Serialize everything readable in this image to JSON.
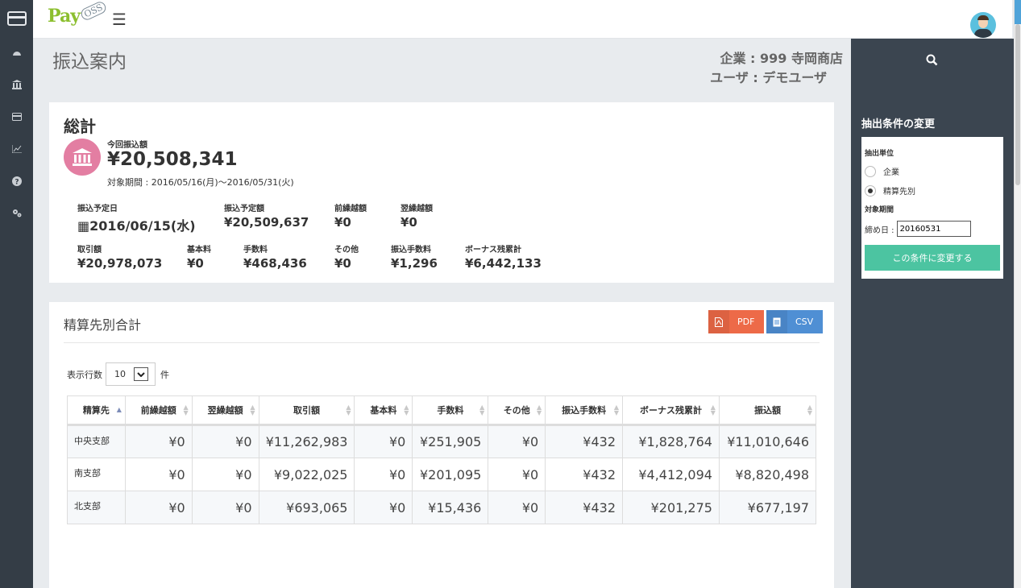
{
  "app": {
    "logo_main": "Pay",
    "logo_sub": "OSS"
  },
  "page": {
    "title": "振込案内",
    "company_line": "企業 : 999 寺岡商店",
    "user_line": "ユーザ : デモユーザ"
  },
  "summary": {
    "heading": "総計",
    "this_amount_label": "今回振込額",
    "this_amount": "¥20,508,341",
    "period": "対象期間 : 2016/05/16(月)〜2016/05/31(火)",
    "row1": [
      {
        "label": "振込予定日",
        "value": "2016/06/15(水)"
      },
      {
        "label": "振込予定額",
        "value": "¥20,509,637"
      },
      {
        "label": "前繰越額",
        "value": "¥0"
      },
      {
        "label": "翌繰越額",
        "value": "¥0"
      }
    ],
    "row2": [
      {
        "label": "取引額",
        "value": "¥20,978,073"
      },
      {
        "label": "基本料",
        "value": "¥0"
      },
      {
        "label": "手数料",
        "value": "¥468,436"
      },
      {
        "label": "その他",
        "value": "¥0"
      },
      {
        "label": "振込手数料",
        "value": "¥1,296"
      },
      {
        "label": "ボーナス残累計",
        "value": "¥6,442,133"
      }
    ]
  },
  "breakdown": {
    "heading": "精算先別合計",
    "pdf_label": "PDF",
    "csv_label": "CSV",
    "rows_label": "表示行数",
    "rows_value": "10",
    "rows_unit": "件",
    "columns": [
      "精算先",
      "前繰越額",
      "翌繰越額",
      "取引額",
      "基本料",
      "手数料",
      "その他",
      "振込手数料",
      "ボーナス残累計",
      "振込額"
    ],
    "rows": [
      [
        "中央支部",
        "¥0",
        "¥0",
        "¥11,262,983",
        "¥0",
        "¥251,905",
        "¥0",
        "¥432",
        "¥1,828,764",
        "¥11,010,646"
      ],
      [
        "南支部",
        "¥0",
        "¥0",
        "¥9,022,025",
        "¥0",
        "¥201,095",
        "¥0",
        "¥432",
        "¥4,412,094",
        "¥8,820,498"
      ],
      [
        "北支部",
        "¥0",
        "¥0",
        "¥693,065",
        "¥0",
        "¥15,436",
        "¥0",
        "¥432",
        "¥201,275",
        "¥677,197"
      ]
    ]
  },
  "filter": {
    "title": "抽出条件の変更",
    "unit_label": "抽出単位",
    "option_company": "企業",
    "option_settlement": "精算先別",
    "selected": "精算先別",
    "period_label": "対象期間",
    "closing_label": "締め日 :",
    "closing_value": "20160531",
    "submit_label": "この条件に変更する"
  },
  "icons": {
    "rail": [
      "card-icon",
      "dashboard-icon",
      "bank-icon",
      "credit-card-icon",
      "chart-icon",
      "help-icon",
      "settings-icon"
    ],
    "search": "search-icon",
    "menu": "hamburger-icon"
  },
  "colors": {
    "sidebar": "#343d46",
    "right_panel": "#3b4550",
    "pdf_button": "#ed6a48",
    "csv_button": "#4f8fd4",
    "submit_button": "#4cc4a1",
    "bank_badge": "#e37ea2"
  }
}
